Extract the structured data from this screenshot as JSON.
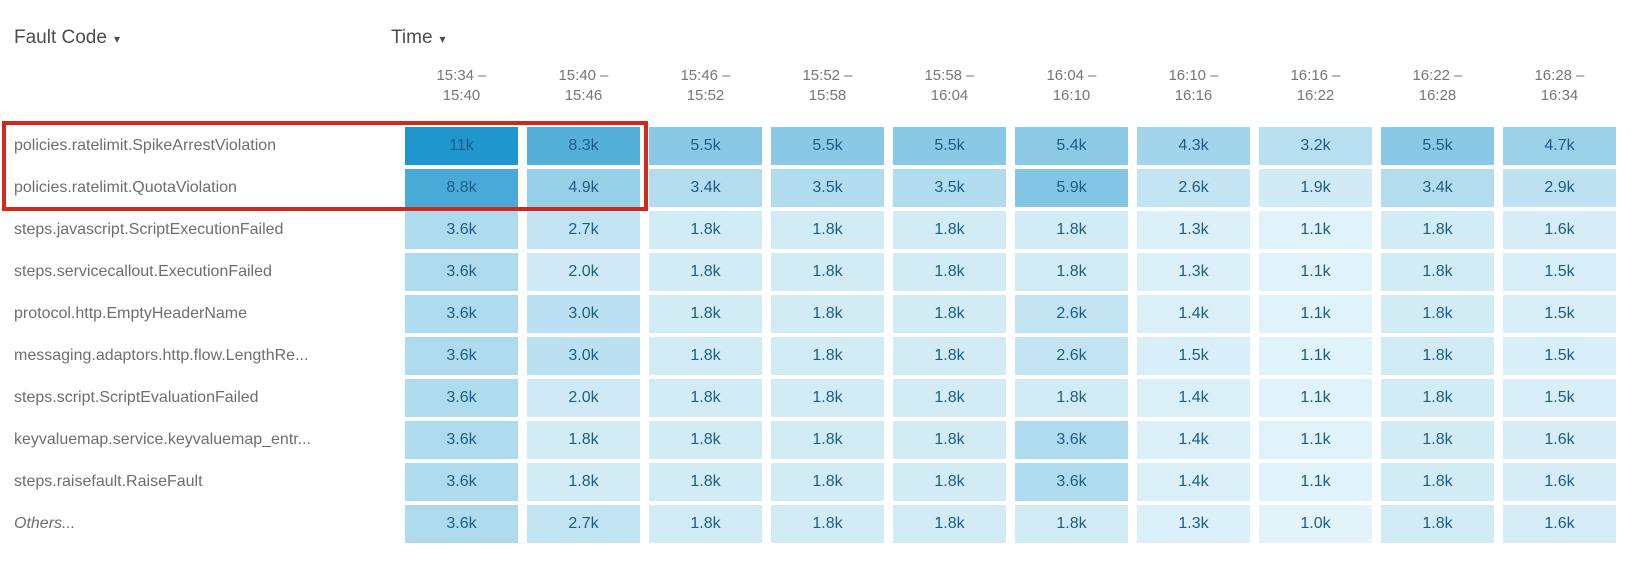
{
  "controls": {
    "row_dimension_label": "Fault Code",
    "column_dimension_label": "Time",
    "caret_glyph": "▾"
  },
  "chart_data": {
    "type": "heatmap",
    "columns": [
      {
        "top": "15:34 –",
        "bottom": "15:40"
      },
      {
        "top": "15:40 –",
        "bottom": "15:46"
      },
      {
        "top": "15:46 –",
        "bottom": "15:52"
      },
      {
        "top": "15:52 –",
        "bottom": "15:58"
      },
      {
        "top": "15:58 –",
        "bottom": "16:04"
      },
      {
        "top": "16:04 –",
        "bottom": "16:10"
      },
      {
        "top": "16:10 –",
        "bottom": "16:16"
      },
      {
        "top": "16:16 –",
        "bottom": "16:22"
      },
      {
        "top": "16:22 –",
        "bottom": "16:28"
      },
      {
        "top": "16:28 –",
        "bottom": "16:34"
      }
    ],
    "rows": [
      {
        "label": "policies.ratelimit.SpikeArrestViolation",
        "italic": false,
        "values": [
          "11k",
          "8.3k",
          "5.5k",
          "5.5k",
          "5.5k",
          "5.4k",
          "4.3k",
          "3.2k",
          "5.5k",
          "4.7k"
        ]
      },
      {
        "label": "policies.ratelimit.QuotaViolation",
        "italic": false,
        "values": [
          "8.8k",
          "4.9k",
          "3.4k",
          "3.5k",
          "3.5k",
          "5.9k",
          "2.6k",
          "1.9k",
          "3.4k",
          "2.9k"
        ]
      },
      {
        "label": "steps.javascript.ScriptExecutionFailed",
        "italic": false,
        "values": [
          "3.6k",
          "2.7k",
          "1.8k",
          "1.8k",
          "1.8k",
          "1.8k",
          "1.3k",
          "1.1k",
          "1.8k",
          "1.6k"
        ]
      },
      {
        "label": "steps.servicecallout.ExecutionFailed",
        "italic": false,
        "values": [
          "3.6k",
          "2.0k",
          "1.8k",
          "1.8k",
          "1.8k",
          "1.8k",
          "1.3k",
          "1.1k",
          "1.8k",
          "1.5k"
        ]
      },
      {
        "label": "protocol.http.EmptyHeaderName",
        "italic": false,
        "values": [
          "3.6k",
          "3.0k",
          "1.8k",
          "1.8k",
          "1.8k",
          "2.6k",
          "1.4k",
          "1.1k",
          "1.8k",
          "1.5k"
        ]
      },
      {
        "label": "messaging.adaptors.http.flow.LengthRe...",
        "italic": false,
        "values": [
          "3.6k",
          "3.0k",
          "1.8k",
          "1.8k",
          "1.8k",
          "2.6k",
          "1.5k",
          "1.1k",
          "1.8k",
          "1.5k"
        ]
      },
      {
        "label": "steps.script.ScriptEvaluationFailed",
        "italic": false,
        "values": [
          "3.6k",
          "2.0k",
          "1.8k",
          "1.8k",
          "1.8k",
          "1.8k",
          "1.4k",
          "1.1k",
          "1.8k",
          "1.5k"
        ]
      },
      {
        "label": "keyvaluemap.service.keyvaluemap_entr...",
        "italic": false,
        "values": [
          "3.6k",
          "1.8k",
          "1.8k",
          "1.8k",
          "1.8k",
          "3.6k",
          "1.4k",
          "1.1k",
          "1.8k",
          "1.6k"
        ]
      },
      {
        "label": "steps.raisefault.RaiseFault",
        "italic": false,
        "values": [
          "3.6k",
          "1.8k",
          "1.8k",
          "1.8k",
          "1.8k",
          "3.6k",
          "1.4k",
          "1.1k",
          "1.8k",
          "1.6k"
        ]
      },
      {
        "label": "Others...",
        "italic": true,
        "values": [
          "3.6k",
          "2.7k",
          "1.8k",
          "1.8k",
          "1.8k",
          "1.8k",
          "1.3k",
          "1.0k",
          "1.8k",
          "1.6k"
        ]
      }
    ],
    "value_scale": {
      "min_k": 1.0,
      "max_k": 11.0
    },
    "colors": {
      "heat_min": "#e2f3fa",
      "heat_max": "#1f96cd",
      "cell_text": "#1d5d85",
      "row_label_text": "#6e6e6e",
      "column_header_text": "#767676",
      "control_text": "#4d4d4d",
      "highlight_border": "#cf2a1b"
    },
    "highlight": {
      "rows": 2,
      "cols": 2
    }
  }
}
